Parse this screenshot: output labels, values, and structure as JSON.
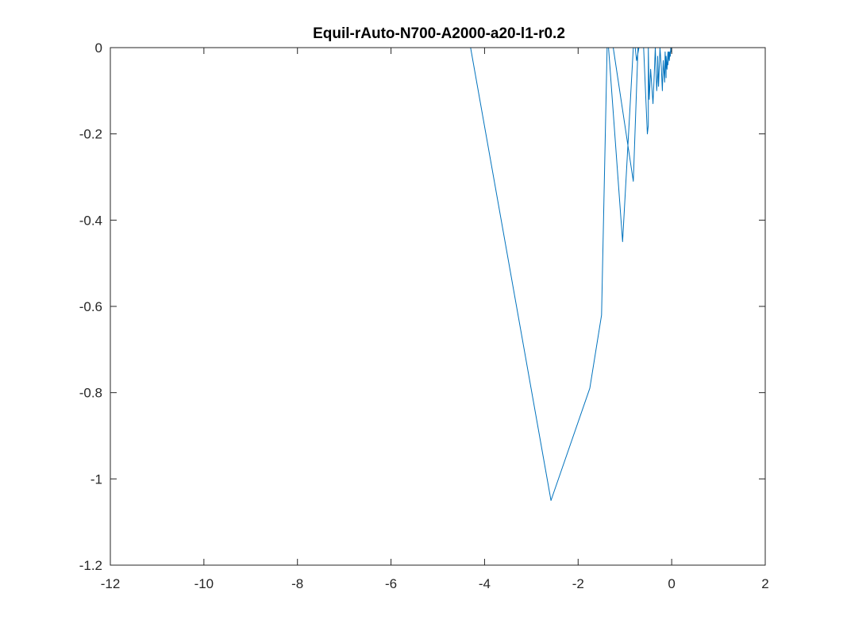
{
  "chart_data": {
    "type": "line",
    "title": "Equil-rAuto-N700-A2000-a20-l1-r0.2",
    "xlabel": "",
    "ylabel": "",
    "xlim": [
      -12,
      2
    ],
    "ylim": [
      -1.2,
      0
    ],
    "x_ticks": [
      -12,
      -10,
      -8,
      -6,
      -4,
      -2,
      0,
      2
    ],
    "y_ticks": [
      -1.2,
      -1,
      -0.8,
      -0.6,
      -0.4,
      -0.2,
      0
    ],
    "x_tick_labels": [
      "-12",
      "-10",
      "-8",
      "-6",
      "-4",
      "-2",
      "0",
      "2"
    ],
    "y_tick_labels": [
      "-1.2",
      "-1",
      "-0.8",
      "-0.6",
      "-0.4",
      "-0.2",
      "0"
    ],
    "grid": false,
    "legend": "none",
    "series": [
      {
        "color": "#0072BD",
        "x": [
          -10,
          -4.3,
          -2.58,
          -1.75,
          -1.5,
          -1.38,
          -1.35,
          -1.05,
          -0.82,
          -0.78,
          -0.75,
          -0.7,
          -1.25,
          -0.82,
          -0.72,
          -0.68,
          -0.6,
          -0.52,
          -0.5,
          -0.5,
          -0.48,
          -0.45,
          -0.4,
          -0.38,
          -0.35,
          -0.32,
          -0.3,
          -0.3,
          -0.28,
          -0.25,
          -0.22,
          -0.2,
          -0.18,
          -0.15,
          -0.14,
          -0.12,
          -0.12,
          -0.1,
          -0.08,
          -0.08,
          -0.06,
          -0.05,
          -0.04,
          -0.03,
          -0.02,
          -0.01,
          0
        ],
        "y": [
          0,
          0,
          -1.05,
          -0.79,
          -0.62,
          0,
          0,
          -0.45,
          0,
          0,
          -0.03,
          0,
          0,
          -0.31,
          0,
          0,
          0,
          -0.2,
          -0.18,
          0,
          -0.12,
          -0.05,
          -0.13,
          -0.08,
          0,
          -0.1,
          -0.06,
          -0.02,
          -0.09,
          0,
          -0.05,
          -0.1,
          -0.03,
          -0.08,
          -0.01,
          -0.07,
          -0.02,
          -0.05,
          -0.01,
          -0.04,
          -0.01,
          -0.03,
          -0.01,
          -0.02,
          0,
          -0.01,
          0
        ]
      }
    ]
  }
}
